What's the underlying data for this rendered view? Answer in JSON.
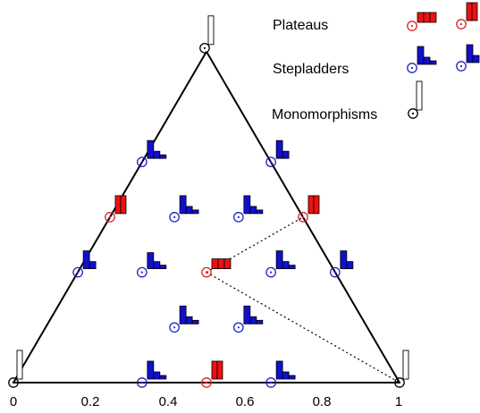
{
  "legend": {
    "plateaus": "Plateaus",
    "stepladders": "Stepladders",
    "monomorphisms": "Monomorphisms"
  },
  "axis": {
    "ticks": [
      "0",
      "0.2",
      "0.4",
      "0.6",
      "0.8",
      "1"
    ]
  },
  "colors": {
    "plateau": "#ee1111",
    "stepladder": "#1010cc",
    "monomorphism": "#ffffff",
    "plateau_circle": "#dd2222",
    "stepladder_circle": "#2222cc",
    "monomorphism_circle": "#000000",
    "outline": "#000000"
  },
  "chart_data": {
    "type": "scatter",
    "categories": [
      "Plateaus",
      "Stepladders",
      "Monomorphisms"
    ],
    "xlim": [
      0,
      1
    ],
    "points": [
      {
        "x": 0.5,
        "level": 6,
        "kind": "monomorphism"
      },
      {
        "x": 0.333,
        "level": 4,
        "kind": "stepladder"
      },
      {
        "x": 0.667,
        "level": 4,
        "kind": "stepladder-mirror"
      },
      {
        "x": 0.25,
        "level": 3,
        "kind": "plateau-2"
      },
      {
        "x": 0.417,
        "level": 3,
        "kind": "stepladder"
      },
      {
        "x": 0.583,
        "level": 3,
        "kind": "stepladder"
      },
      {
        "x": 0.75,
        "level": 3,
        "kind": "plateau-2"
      },
      {
        "x": 0.167,
        "level": 2,
        "kind": "stepladder-mirror"
      },
      {
        "x": 0.333,
        "level": 2,
        "kind": "stepladder-3"
      },
      {
        "x": 0.5,
        "level": 2,
        "kind": "plateau-3"
      },
      {
        "x": 0.667,
        "level": 2,
        "kind": "stepladder"
      },
      {
        "x": 0.833,
        "level": 2,
        "kind": "stepladder-mirror"
      },
      {
        "x": 0.417,
        "level": 1,
        "kind": "stepladder"
      },
      {
        "x": 0.583,
        "level": 1,
        "kind": "stepladder"
      },
      {
        "x": 0,
        "level": 0,
        "kind": "monomorphism"
      },
      {
        "x": 0.333,
        "level": 0,
        "kind": "stepladder"
      },
      {
        "x": 0.5,
        "level": 0,
        "kind": "plateau-2"
      },
      {
        "x": 0.667,
        "level": 0,
        "kind": "stepladder"
      },
      {
        "x": 1,
        "level": 0,
        "kind": "monomorphism"
      }
    ],
    "dotted_links": [
      {
        "from": {
          "x": 0.5,
          "level": 2
        },
        "to": {
          "x": 0.75,
          "level": 3
        }
      },
      {
        "from": {
          "x": 0.5,
          "level": 2
        },
        "to": {
          "x": 1,
          "level": 0
        }
      }
    ]
  }
}
